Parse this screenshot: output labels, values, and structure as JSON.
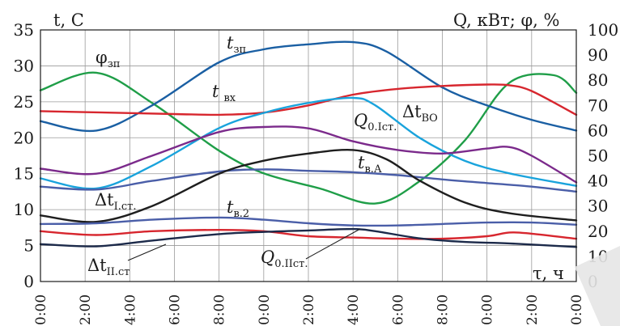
{
  "chart_data": {
    "type": "line",
    "left_axis_unit": "t, C",
    "right_axis_unit": "Q, кВт; φ, %",
    "x_axis_unit": "τ, ч",
    "x": [
      0,
      2,
      4,
      6,
      8,
      10,
      12,
      14,
      16,
      18,
      20,
      22,
      24
    ],
    "xticks": [
      "0:00",
      "2:00",
      "4:00",
      "6:00",
      "8:00",
      "0:00",
      "2:00",
      "4:00",
      "6:00",
      "8:00",
      "0:00",
      "2:00",
      "0:00"
    ],
    "ylim": [
      0,
      35
    ],
    "y2lim": [
      0,
      100
    ],
    "yticks": [
      0,
      5,
      10,
      15,
      20,
      25,
      30,
      35
    ],
    "y2ticks": [
      0,
      10,
      20,
      30,
      40,
      50,
      60,
      70,
      80,
      90,
      100
    ],
    "grid": true,
    "series": [
      {
        "name": "φзп",
        "axis": "right",
        "color": "#1f9e48",
        "x": [
          0,
          2.5,
          5,
          8,
          10,
          12.5,
          15,
          17,
          19,
          21,
          23,
          24
        ],
        "values": [
          76,
          83,
          71,
          52,
          43,
          37,
          31,
          40,
          56,
          79,
          82,
          75
        ]
      },
      {
        "name": "tзп",
        "axis": "left",
        "color": "#1a5fa3",
        "x": [
          0,
          2.5,
          5,
          8,
          10,
          12,
          14,
          15.5,
          18,
          20,
          22,
          24
        ],
        "values": [
          22.3,
          21.0,
          24.5,
          30.5,
          32.3,
          33.0,
          33.3,
          32.0,
          27.0,
          24.5,
          22.5,
          21.0
        ]
      },
      {
        "name": "tвх",
        "axis": "left",
        "color": "#d7262e",
        "x": [
          0,
          3,
          6,
          8,
          10,
          12,
          14,
          16,
          18,
          20,
          21,
          22,
          24
        ],
        "values": [
          23.7,
          23.5,
          23.3,
          23.2,
          23.5,
          24.5,
          26.0,
          26.8,
          27.2,
          27.4,
          27.3,
          26.5,
          23.2
        ]
      },
      {
        "name": "Q0.Iст.",
        "axis": "right",
        "color": "#19a3dc",
        "x": [
          0,
          2.5,
          5,
          8,
          10,
          12,
          14,
          15,
          17,
          19,
          21,
          24
        ],
        "values": [
          41,
          37,
          46,
          61,
          67,
          71,
          73,
          70,
          57,
          48,
          43,
          38
        ]
      },
      {
        "name": "ΔtВО",
        "axis": "left",
        "color": "#7b2a8b",
        "x": [
          0,
          2.5,
          5,
          8,
          10,
          12,
          14,
          16,
          18,
          20,
          21,
          22,
          24
        ],
        "values": [
          15.7,
          15.0,
          17.5,
          20.8,
          21.5,
          21.3,
          19.5,
          18.3,
          17.8,
          18.5,
          18.7,
          17.5,
          13.8
        ]
      },
      {
        "name": "tв.А",
        "axis": "left",
        "color": "#4a5ea8",
        "x": [
          0,
          2.5,
          5,
          8,
          10,
          12,
          14,
          16,
          18,
          20,
          22,
          24
        ],
        "values": [
          13.2,
          12.8,
          14.0,
          15.3,
          15.6,
          15.4,
          15.2,
          14.8,
          14.2,
          13.7,
          13.2,
          12.5
        ]
      },
      {
        "name": "ΔtI.ст.",
        "axis": "left",
        "color": "#1e1e1e",
        "x": [
          0,
          2.5,
          5,
          8,
          10,
          12,
          14,
          15.5,
          17,
          19,
          21,
          24
        ],
        "values": [
          9.2,
          8.3,
          10.5,
          15.0,
          16.8,
          17.8,
          18.3,
          17.0,
          14.0,
          11.0,
          9.5,
          8.5
        ]
      },
      {
        "name": "tв.2",
        "axis": "left",
        "color": "#4a5ea8",
        "x": [
          0,
          2.5,
          5,
          8,
          10,
          12,
          14,
          16,
          18,
          20,
          22,
          24
        ],
        "values": [
          8.0,
          8.1,
          8.6,
          8.9,
          8.6,
          8.1,
          7.8,
          7.8,
          8.0,
          8.2,
          8.2,
          7.9
        ]
      },
      {
        "name": "Q0.IIст.",
        "axis": "right",
        "color": "#d7262e",
        "x": [
          0,
          2.5,
          5,
          8,
          10,
          12,
          14,
          16,
          18,
          20,
          21,
          22,
          24
        ],
        "values": [
          20,
          18.5,
          20,
          20.5,
          20,
          18,
          17.5,
          17,
          17,
          18,
          19.5,
          19,
          17
        ]
      },
      {
        "name": "ΔtII.ст",
        "axis": "left",
        "color": "#1c2a4a",
        "x": [
          0,
          2.5,
          5,
          8,
          10,
          12,
          14,
          15,
          17,
          19,
          21,
          24
        ],
        "values": [
          5.2,
          4.9,
          5.7,
          6.6,
          6.9,
          7.1,
          7.3,
          7.0,
          6.0,
          5.5,
          5.3,
          4.8
        ]
      }
    ]
  },
  "labels": {
    "phi_zp": "φ",
    "phi_zp_sub": "зп",
    "t_zp": "t",
    "t_zp_sub": "зп",
    "t_vx": "t",
    "t_vx_sub": "вх",
    "q0_ist": "Q",
    "q0_ist_sub": "0.Iст.",
    "dt_vo": "Δt",
    "dt_vo_sub": "ВО",
    "t_va": "t",
    "t_va_sub": "в.А",
    "dt_ist": "Δt",
    "dt_ist_sub": "I.ст.",
    "t_v2": "t",
    "t_v2_sub": "в.2",
    "dt_iist": "Δt",
    "dt_iist_sub": "II.ст",
    "q0_iist": "Q",
    "q0_iist_sub": "0.IIст."
  }
}
